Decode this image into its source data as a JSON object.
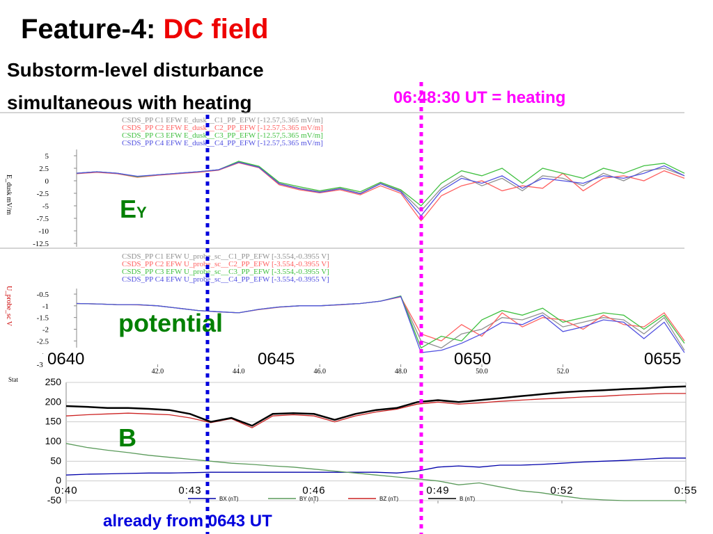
{
  "slide": {
    "title": "Feature-4: ",
    "title_highlight": "DC field",
    "subtitle_line1": "Substorm-level disturbance",
    "subtitle_line2": "simultaneous with heating",
    "heating_note": "06:48:30 UT = heating",
    "onset_note": "already  from 0643 UT",
    "ey_label": "E",
    "ey_subscript": "Y",
    "potential_label": "potential",
    "b_label": "B",
    "time_labels": [
      "0640",
      "0645",
      "0650",
      "0655"
    ]
  },
  "chart_data": [
    {
      "type": "line",
      "ylabel": "E_dusk mV/m",
      "x": [
        40,
        40.5,
        41,
        41.5,
        42,
        42.5,
        43,
        43.5,
        44,
        44.5,
        45,
        45.5,
        46,
        46.5,
        47,
        47.5,
        48,
        48.5,
        49,
        49.5,
        50,
        50.5,
        51,
        51.5,
        52,
        52.5,
        53,
        53.5,
        54,
        54.5,
        55
      ],
      "series": [
        {
          "name": "CSDS_PP C1 EFW E_dusk__C1_PP_EFW [-12.57,5.365 mV/m]",
          "color": "#909090",
          "values": [
            1.5,
            1.8,
            1.5,
            0.8,
            1.2,
            1.5,
            1.8,
            2.2,
            3.8,
            2.8,
            -0.5,
            -1.5,
            -2.2,
            -1.5,
            -2.5,
            -0.5,
            -2,
            -6,
            -1.5,
            1,
            -1,
            0.5,
            -2,
            1,
            0.5,
            -1,
            1.5,
            0,
            2,
            2.5,
            1
          ]
        },
        {
          "name": "CSDS_PP C2 EFW E_dusk__C2_PP_EFW [-12.57,5.365 mV/m]",
          "color": "#ff6060",
          "values": [
            1.4,
            1.7,
            1.4,
            0.7,
            1.1,
            1.4,
            1.7,
            2.1,
            3.6,
            2.6,
            -0.8,
            -1.8,
            -2.4,
            -1.8,
            -2.8,
            -1,
            -2.5,
            -8,
            -3,
            -1,
            0,
            -2,
            -1,
            -1.5,
            1.5,
            -2,
            0.5,
            1,
            0,
            2,
            0.5
          ]
        },
        {
          "name": "CSDS_PP C3 EFW E_dusk__C3_PP_EFW [-12.57,5.365 mV/m]",
          "color": "#40c040",
          "values": [
            1.5,
            1.8,
            1.5,
            0.8,
            1.2,
            1.5,
            1.8,
            2.2,
            3.9,
            2.9,
            -0.3,
            -1.2,
            -2,
            -1.3,
            -2.2,
            -0.3,
            -1.8,
            -5,
            -0.5,
            2,
            1,
            2.5,
            -0.5,
            2.5,
            1.5,
            0.5,
            2.5,
            1.5,
            3,
            3.5,
            1.5
          ]
        },
        {
          "name": "CSDS_PP C4 EFW E_dusk__C4_PP_EFW [-12.57,5.365 mV/m]",
          "color": "#5050e0",
          "values": [
            1.5,
            1.8,
            1.5,
            0.9,
            1.2,
            1.5,
            1.8,
            2.2,
            3.7,
            2.7,
            -0.6,
            -1.6,
            -2.3,
            -1.6,
            -2.6,
            -0.6,
            -2.2,
            -7,
            -2,
            0.5,
            -0.5,
            1,
            -1.5,
            0.5,
            0,
            -0.5,
            1,
            0.5,
            1.5,
            3,
            1
          ]
        }
      ],
      "xlim": [
        40,
        55
      ],
      "ylim": [
        -12.5,
        5
      ],
      "yticks": [
        5,
        2.5,
        0,
        -2.5,
        -5,
        -7.5,
        -10,
        -12.5
      ]
    },
    {
      "type": "line",
      "ylabel": "U_probe_sc V",
      "x": [
        40,
        40.5,
        41,
        41.5,
        42,
        42.5,
        43,
        43.5,
        44,
        44.5,
        45,
        45.5,
        46,
        46.5,
        47,
        47.5,
        48,
        48.5,
        49,
        49.5,
        50,
        50.5,
        51,
        51.5,
        52,
        52.5,
        53,
        53.5,
        54,
        54.5,
        55
      ],
      "series": [
        {
          "name": "CSDS_PP C1 EFW U_probe_sc__C1_PP_EFW [-3.554,-0.3955 V]",
          "color": "#909090",
          "values": [
            -0.9,
            -0.92,
            -0.95,
            -0.95,
            -1,
            -1.1,
            -1.2,
            -1.25,
            -1.3,
            -1.15,
            -1.05,
            -1,
            -1,
            -0.95,
            -0.9,
            -0.8,
            -0.6,
            -2.5,
            -2.8,
            -2.2,
            -2,
            -1.5,
            -1.6,
            -1.3,
            -1.9,
            -1.7,
            -1.5,
            -1.6,
            -2.2,
            -1.5,
            -2.9
          ]
        },
        {
          "name": "CSDS_PP C2 EFW U_probe_sc__C2_PP_EFW [-3.554,-0.3955 V]",
          "color": "#ff6060",
          "values": [
            -0.9,
            -0.92,
            -0.95,
            -0.96,
            -1,
            -1.1,
            -1.2,
            -1.26,
            -1.3,
            -1.16,
            -1.06,
            -1,
            -1,
            -0.96,
            -0.9,
            -0.8,
            -0.62,
            -2.2,
            -2.5,
            -1.8,
            -2.3,
            -1.3,
            -1.9,
            -1.5,
            -1.6,
            -2,
            -1.4,
            -1.8,
            -1.9,
            -1.3,
            -2.5
          ]
        },
        {
          "name": "CSDS_PP C3 EFW U_probe_sc__C3_PP_EFW [-3.554,-0.3955 V]",
          "color": "#40c040",
          "values": [
            -0.9,
            -0.92,
            -0.95,
            -0.95,
            -1,
            -1.1,
            -1.2,
            -1.25,
            -1.3,
            -1.15,
            -1.05,
            -1,
            -1,
            -0.95,
            -0.9,
            -0.8,
            -0.58,
            -2.8,
            -2.3,
            -2.5,
            -1.6,
            -1.2,
            -1.4,
            -1.1,
            -1.7,
            -1.5,
            -1.3,
            -1.4,
            -2,
            -1.4,
            -2.6
          ]
        },
        {
          "name": "CSDS_PP C4 EFW U_probe_sc__C4_PP_EFW [-3.554,-0.3955 V]",
          "color": "#5050e0",
          "values": [
            -0.9,
            -0.92,
            -0.95,
            -0.95,
            -1,
            -1.1,
            -1.2,
            -1.25,
            -1.3,
            -1.15,
            -1.05,
            -1,
            -1,
            -0.95,
            -0.9,
            -0.8,
            -0.6,
            -3,
            -2.9,
            -2.6,
            -2.2,
            -1.7,
            -1.8,
            -1.4,
            -2.1,
            -1.9,
            -1.6,
            -1.7,
            -2.4,
            -1.7,
            -3
          ]
        }
      ],
      "xlim": [
        40,
        55
      ],
      "ylim": [
        -3.5,
        -0.5
      ],
      "yticks": [
        -0.5,
        -1,
        -1.5,
        -2,
        -2.5,
        -3,
        -3.5
      ],
      "xticks": [
        {
          "value": 42,
          "label": "42.0"
        },
        {
          "value": 44,
          "label": "44.0"
        },
        {
          "value": 46,
          "label": "46.0"
        },
        {
          "value": 48,
          "label": "48.0"
        },
        {
          "value": 50,
          "label": "50.0"
        },
        {
          "value": 52,
          "label": "52.0"
        }
      ]
    },
    {
      "type": "line",
      "ylabel": "Stat",
      "grid": true,
      "x": [
        40,
        40.5,
        41,
        41.5,
        42,
        42.5,
        43,
        43.5,
        44,
        44.5,
        45,
        45.5,
        46,
        46.5,
        47,
        47.5,
        48,
        48.5,
        49,
        49.5,
        50,
        50.5,
        51,
        51.5,
        52,
        52.5,
        53,
        53.5,
        54,
        54.5,
        55
      ],
      "series": [
        {
          "name": "BX (nT)",
          "color": "#0000aa",
          "values": [
            15,
            17,
            18,
            19,
            20,
            20,
            21,
            22,
            22,
            22,
            22,
            22,
            22,
            22,
            22,
            22,
            20,
            25,
            35,
            38,
            35,
            40,
            40,
            42,
            45,
            48,
            50,
            52,
            55,
            58,
            58
          ]
        },
        {
          "name": "BY (nT)",
          "color": "#5a9a5a",
          "values": [
            95,
            85,
            78,
            72,
            65,
            60,
            55,
            50,
            45,
            42,
            38,
            35,
            30,
            25,
            20,
            15,
            10,
            5,
            0,
            -10,
            -5,
            -15,
            -25,
            -30,
            -38,
            -45,
            -48,
            -50,
            -50,
            -50,
            -50
          ]
        },
        {
          "name": "BZ (nT)",
          "color": "#cc2222",
          "values": [
            165,
            168,
            170,
            172,
            170,
            168,
            160,
            148,
            158,
            135,
            165,
            168,
            165,
            150,
            165,
            175,
            182,
            195,
            200,
            195,
            198,
            202,
            205,
            208,
            210,
            213,
            215,
            218,
            220,
            222,
            222
          ]
        },
        {
          "name": "B (nT)",
          "color": "#000000",
          "values": [
            190,
            188,
            185,
            185,
            183,
            180,
            170,
            150,
            160,
            140,
            170,
            172,
            170,
            155,
            170,
            180,
            185,
            200,
            205,
            200,
            205,
            210,
            215,
            220,
            225,
            228,
            230,
            233,
            235,
            238,
            240
          ]
        }
      ],
      "xlim": [
        40,
        55
      ],
      "ylim": [
        -50,
        250
      ],
      "yticks": [
        250,
        200,
        150,
        100,
        50,
        0,
        -50
      ],
      "xticks": [
        {
          "value": 40,
          "label": "0:40"
        },
        {
          "value": 43,
          "label": "0:43"
        },
        {
          "value": 46,
          "label": "0:46"
        },
        {
          "value": 49,
          "label": "0:49"
        },
        {
          "value": 52,
          "label": "0:52"
        },
        {
          "value": 55,
          "label": "0:55"
        }
      ]
    }
  ]
}
